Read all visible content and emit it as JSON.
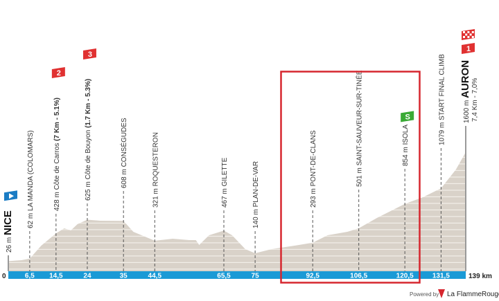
{
  "chart_data": {
    "type": "area",
    "xlabel_unit": "km",
    "x_end_label": "139 km",
    "x_start_label": "0",
    "xlim": [
      0,
      139
    ],
    "x_ticks": [
      "6,5",
      "14,5",
      "24",
      "35",
      "44,5",
      "65,5",
      "75",
      "92,5",
      "106,5",
      "120,5",
      "131,5"
    ],
    "x_tick_values": [
      6.5,
      14.5,
      24,
      35,
      44.5,
      65.5,
      75,
      92.5,
      106.5,
      120.5,
      131.5
    ],
    "profile": {
      "km": [
        0,
        4,
        6.5,
        10,
        14.5,
        17,
        19,
        21,
        24,
        28,
        35,
        38,
        44.5,
        50,
        55,
        57,
        58,
        61,
        65.5,
        68,
        72,
        75,
        80,
        87,
        92.5,
        97,
        103,
        106.5,
        112,
        120.5,
        126,
        131.5,
        136,
        139
      ],
      "elevation_m": [
        26,
        40,
        62,
        250,
        428,
        500,
        470,
        560,
        625,
        610,
        608,
        450,
        321,
        350,
        330,
        330,
        260,
        400,
        467,
        400,
        200,
        140,
        200,
        250,
        293,
        400,
        450,
        501,
        650,
        854,
        950,
        1079,
        1350,
        1600
      ]
    },
    "waypoints": [
      {
        "km": 0,
        "elev": "26 m",
        "name": "NICE",
        "type": "start",
        "icon": "start-flag-icon"
      },
      {
        "km": 6.5,
        "elev": "62 m",
        "name": "LA MANDA (COLOMARS)"
      },
      {
        "km": 14.5,
        "elev": "428 m",
        "name": "Côte de Carros",
        "detail": "(7 Km - 5.1%)",
        "type": "climb",
        "category": "2"
      },
      {
        "km": 24,
        "elev": "625 m",
        "name": "Côte de Bouyon",
        "detail": "(1.7 Km - 5.3%)",
        "type": "climb",
        "category": "3"
      },
      {
        "km": 35,
        "elev": "608 m",
        "name": "CONSÉGUDES"
      },
      {
        "km": 44.5,
        "elev": "321 m",
        "name": "ROQUESTERON"
      },
      {
        "km": 65.5,
        "elev": "467 m",
        "name": "GILETTE"
      },
      {
        "km": 75,
        "elev": "140 m",
        "name": "PLAN-DE-VAR"
      },
      {
        "km": 92.5,
        "elev": "293 m",
        "name": "PONT-DE-CLANS"
      },
      {
        "km": 106.5,
        "elev": "501 m",
        "name": "SAINT-SAUVEUR-SUR-TINÉE"
      },
      {
        "km": 120.5,
        "elev": "854 m",
        "name": "ISOLA",
        "type": "sprint",
        "category": "S"
      },
      {
        "km": 131.5,
        "elev": "1079 m",
        "name": "START FINAL CLIMB"
      },
      {
        "km": 139,
        "elev": "1600 m",
        "name": "AURON",
        "detail": "7,4 Km - 7,0%",
        "type": "finish",
        "category": "1"
      }
    ],
    "highlight_range_km": [
      81,
      124
    ],
    "colors": {
      "profile": "#d9d2c9",
      "axis_bar": "#1a9ad6",
      "climb": "#e03131",
      "sprint": "#3aaa35",
      "start": "#1a7cc4",
      "highlight": "#d6262e"
    }
  },
  "footer": {
    "powered_by": "Powered by",
    "brand": "La FlammeRouge"
  }
}
